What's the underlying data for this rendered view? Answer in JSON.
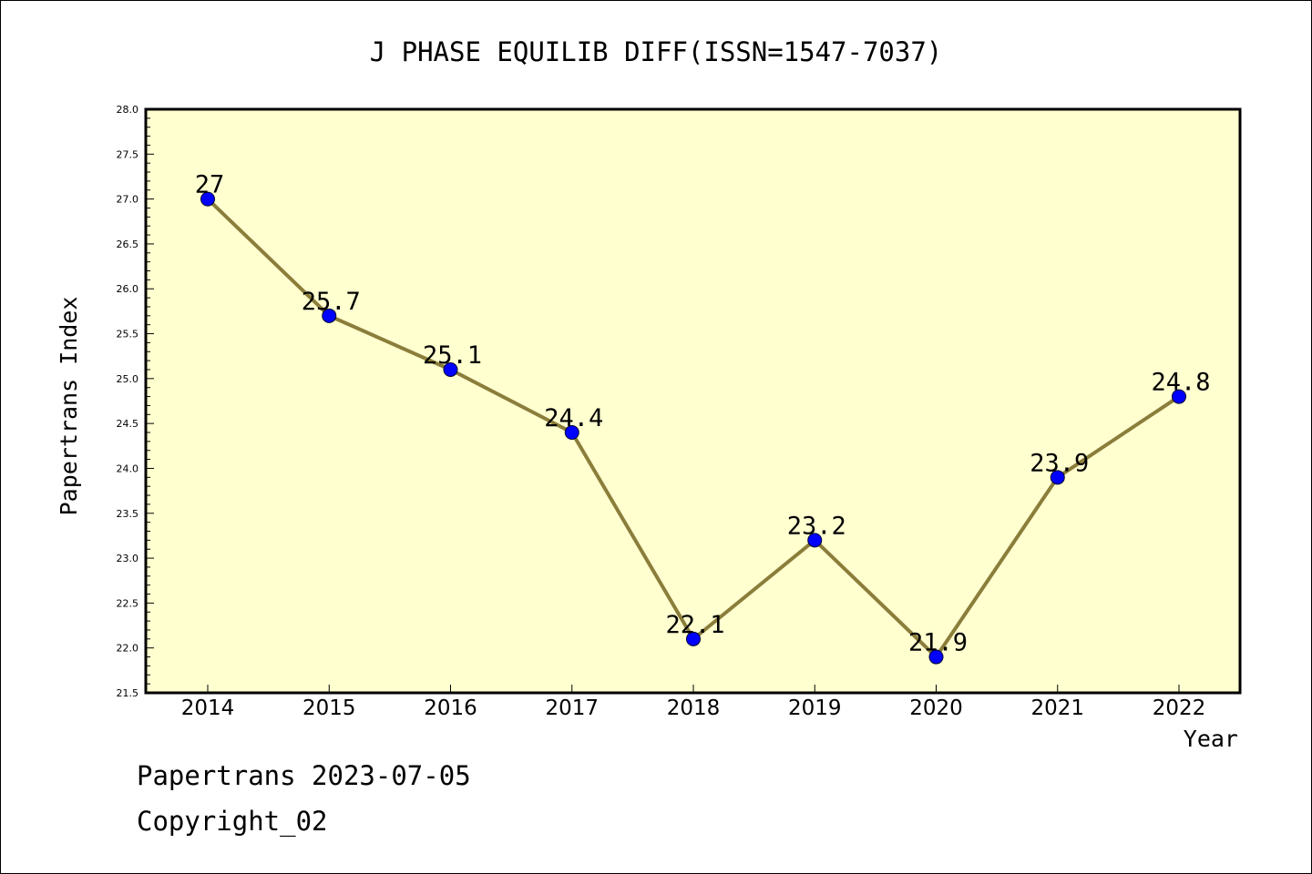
{
  "chart_data": {
    "type": "line",
    "title": "J PHASE EQUILIB DIFF(ISSN=1547-7037)",
    "xlabel": "Year",
    "ylabel": "Papertrans Index",
    "categories": [
      "2014",
      "2015",
      "2016",
      "2017",
      "2018",
      "2019",
      "2020",
      "2021",
      "2022"
    ],
    "values": [
      27,
      25.7,
      25.1,
      24.4,
      22.1,
      23.2,
      21.9,
      23.9,
      24.8
    ],
    "data_labels": [
      "27",
      "25.7",
      "25.1",
      "24.4",
      "22.1",
      "23.2",
      "21.9",
      "23.9",
      "24.8"
    ],
    "ylim": [
      21.5,
      28.0
    ],
    "y_ticks": [
      "21.5",
      "22.0",
      "22.5",
      "23.0",
      "23.5",
      "24.0",
      "24.5",
      "25.0",
      "25.5",
      "26.0",
      "26.5",
      "27.0",
      "27.5",
      "28.0"
    ],
    "grid": false,
    "legend": "none",
    "colors": {
      "plot_background": "#ffffd0",
      "line": "#8b7d3a",
      "marker": "#0000ff"
    }
  },
  "footer": {
    "line1": "Papertrans 2023-07-05",
    "line2": "Copyright_02"
  }
}
